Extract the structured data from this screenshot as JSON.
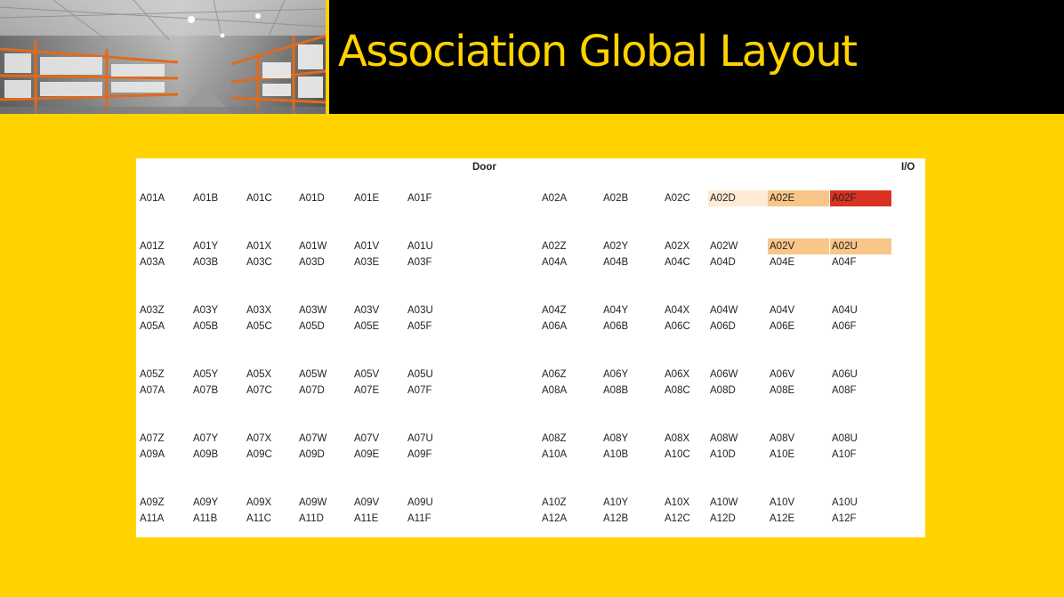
{
  "title": "Association Global Layout",
  "labels": {
    "door": "Door",
    "io": "I/O"
  },
  "colors": {
    "background": "#FFD200",
    "header_bar": "#000000",
    "title_text": "#FFD200",
    "light_peach": "#FDEBD6",
    "peach": "#F9C68A",
    "red": "#D93222"
  },
  "rows": [
    {
      "left": [
        "A01A",
        "A01B",
        "A01C",
        "A01D",
        "A01E",
        "A01F"
      ],
      "right": [
        "A02A",
        "A02B",
        "A02C",
        "A02D",
        "A02E",
        "A02F"
      ]
    },
    {
      "left": [
        "A01Z",
        "A01Y",
        "A01X",
        "A01W",
        "A01V",
        "A01U"
      ],
      "right": [
        "A02Z",
        "A02Y",
        "A02X",
        "A02W",
        "A02V",
        "A02U"
      ]
    },
    {
      "left": [
        "A03A",
        "A03B",
        "A03C",
        "A03D",
        "A03E",
        "A03F"
      ],
      "right": [
        "A04A",
        "A04B",
        "A04C",
        "A04D",
        "A04E",
        "A04F"
      ]
    },
    {
      "left": [
        "A03Z",
        "A03Y",
        "A03X",
        "A03W",
        "A03V",
        "A03U"
      ],
      "right": [
        "A04Z",
        "A04Y",
        "A04X",
        "A04W",
        "A04V",
        "A04U"
      ]
    },
    {
      "left": [
        "A05A",
        "A05B",
        "A05C",
        "A05D",
        "A05E",
        "A05F"
      ],
      "right": [
        "A06A",
        "A06B",
        "A06C",
        "A06D",
        "A06E",
        "A06F"
      ]
    },
    {
      "left": [
        "A05Z",
        "A05Y",
        "A05X",
        "A05W",
        "A05V",
        "A05U"
      ],
      "right": [
        "A06Z",
        "A06Y",
        "A06X",
        "A06W",
        "A06V",
        "A06U"
      ]
    },
    {
      "left": [
        "A07A",
        "A07B",
        "A07C",
        "A07D",
        "A07E",
        "A07F"
      ],
      "right": [
        "A08A",
        "A08B",
        "A08C",
        "A08D",
        "A08E",
        "A08F"
      ]
    },
    {
      "left": [
        "A07Z",
        "A07Y",
        "A07X",
        "A07W",
        "A07V",
        "A07U"
      ],
      "right": [
        "A08Z",
        "A08Y",
        "A08X",
        "A08W",
        "A08V",
        "A08U"
      ]
    },
    {
      "left": [
        "A09A",
        "A09B",
        "A09C",
        "A09D",
        "A09E",
        "A09F"
      ],
      "right": [
        "A10A",
        "A10B",
        "A10C",
        "A10D",
        "A10E",
        "A10F"
      ]
    },
    {
      "left": [
        "A09Z",
        "A09Y",
        "A09X",
        "A09W",
        "A09V",
        "A09U"
      ],
      "right": [
        "A10Z",
        "A10Y",
        "A10X",
        "A10W",
        "A10V",
        "A10U"
      ]
    },
    {
      "left": [
        "A11A",
        "A11B",
        "A11C",
        "A11D",
        "A11E",
        "A11F"
      ],
      "right": [
        "A12A",
        "A12B",
        "A12C",
        "A12D",
        "A12E",
        "A12F"
      ]
    }
  ],
  "highlights": {
    "A02D": "light_peach",
    "A02E": "peach",
    "A02F": "red",
    "A02V": "peach",
    "A02U": "peach"
  }
}
